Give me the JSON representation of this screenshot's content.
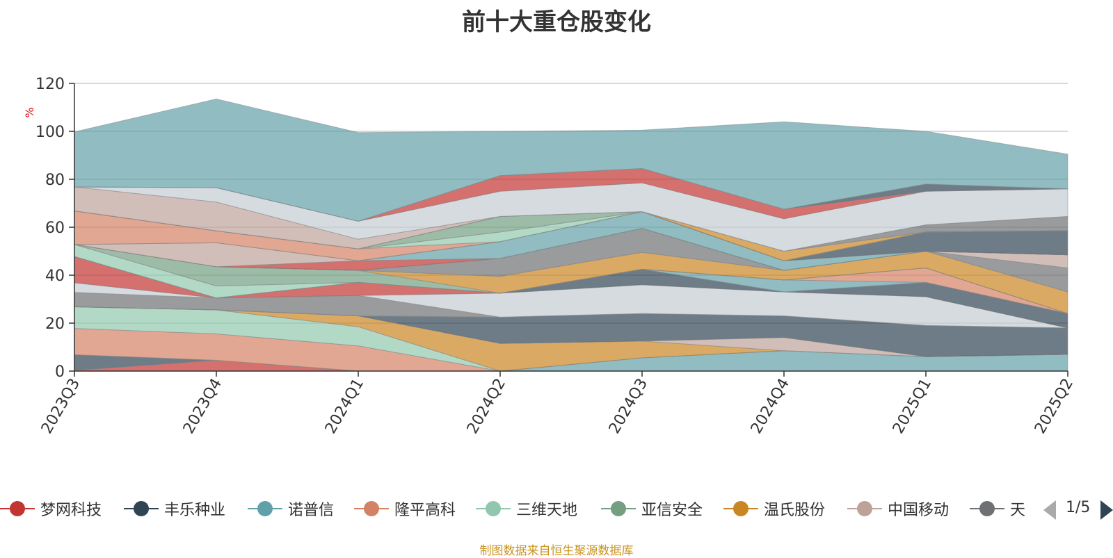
{
  "title": "前十大重仓股变化",
  "source_note": "制图数据来自恒生聚源数据库",
  "pager": {
    "text": "1/5"
  },
  "chart_data": {
    "type": "area",
    "stacked": true,
    "title": "前十大重仓股变化",
    "ylabel": "%",
    "ylim": [
      0,
      120
    ],
    "yticks": [
      0,
      20,
      40,
      60,
      80,
      100,
      120
    ],
    "grid": true,
    "legend_position": "bottom",
    "categories": [
      "2023Q3",
      "2023Q4",
      "2024Q1",
      "2024Q2",
      "2024Q3",
      "2024Q4",
      "2025Q1",
      "2025Q2"
    ],
    "legend": [
      {
        "name": "梦网科技",
        "color": "#c23531"
      },
      {
        "name": "丰乐种业",
        "color": "#2f4554"
      },
      {
        "name": "诺普信",
        "color": "#61a0a8"
      },
      {
        "name": "隆平高科",
        "color": "#d48265"
      },
      {
        "name": "三维天地",
        "color": "#91c7ae"
      },
      {
        "name": "亚信安全",
        "color": "#749f83"
      },
      {
        "name": "温氏股份",
        "color": "#ca8622"
      },
      {
        "name": "中国移动",
        "color": "#bda29a"
      },
      {
        "name": "天",
        "color": "#6e7074"
      }
    ],
    "bands": [
      {
        "color": "#c23531",
        "values": [
          0.3,
          4.5,
          0,
          0,
          0,
          0,
          0,
          0
        ]
      },
      {
        "color": "#2f4554",
        "values": [
          6.5,
          0,
          0,
          0,
          0,
          0,
          0,
          0
        ]
      },
      {
        "color": "#61a0a8",
        "values": [
          0,
          0,
          0,
          0,
          5.5,
          8.5,
          6,
          7
        ]
      },
      {
        "color": "#d48265",
        "values": [
          11,
          11,
          10.5,
          0,
          0,
          0,
          0,
          0
        ]
      },
      {
        "color": "#91c7ae",
        "values": [
          9,
          10,
          8,
          0,
          0,
          0,
          0,
          0
        ]
      },
      {
        "color": "#ca8622",
        "values": [
          0,
          0,
          4.5,
          11.5,
          7,
          0,
          0,
          0
        ]
      },
      {
        "color": "#bda29a",
        "values": [
          0,
          0,
          0,
          0,
          0,
          5.5,
          0,
          0
        ]
      },
      {
        "color": "#2f4554",
        "values": [
          0,
          0,
          0,
          11,
          11.5,
          9,
          13,
          11
        ]
      },
      {
        "color": "#6e7074",
        "values": [
          6,
          5,
          8.5,
          0,
          0,
          0,
          0,
          0
        ]
      },
      {
        "color": "#c4ccd3",
        "values": [
          4,
          0,
          0,
          10,
          12,
          10,
          12,
          0
        ]
      },
      {
        "color": "#c23531",
        "values": [
          11,
          0,
          5.5,
          0,
          0,
          0,
          0,
          0
        ]
      },
      {
        "color": "#2f4554",
        "values": [
          0,
          0,
          0,
          0,
          6.5,
          0,
          6,
          6
        ]
      },
      {
        "color": "#61a0a8",
        "values": [
          0,
          0,
          0,
          0,
          0,
          5,
          0,
          0
        ]
      },
      {
        "color": "#d48265",
        "values": [
          0,
          0,
          0,
          0,
          0,
          0,
          6,
          0
        ]
      },
      {
        "color": "#91c7ae",
        "values": [
          5,
          5,
          0,
          0,
          0,
          0,
          0,
          0
        ]
      },
      {
        "color": "#749f83",
        "values": [
          0,
          8,
          5,
          0,
          0,
          0,
          0,
          0
        ]
      },
      {
        "color": "#ca8622",
        "values": [
          0,
          0,
          0,
          7,
          7,
          4,
          7,
          9
        ]
      },
      {
        "color": "#6e7074",
        "values": [
          0,
          0,
          0,
          7.5,
          10,
          0,
          0,
          10
        ]
      },
      {
        "color": "#bda29a",
        "values": [
          0,
          0,
          0,
          0,
          0,
          0,
          0,
          5.5
        ]
      },
      {
        "color": "#c4ccd3",
        "values": [
          0,
          0,
          0,
          0,
          0,
          0,
          0,
          0
        ]
      },
      {
        "color": "#c23531",
        "values": [
          0,
          0,
          4,
          0,
          0,
          0,
          0,
          0
        ]
      },
      {
        "color": "#61a0a8",
        "values": [
          0,
          0,
          0,
          7,
          7,
          4,
          0,
          0
        ]
      },
      {
        "color": "#bda29a",
        "values": [
          0,
          10,
          0,
          0,
          0,
          0,
          0,
          0
        ]
      },
      {
        "color": "#2f4554",
        "values": [
          0,
          0,
          0,
          0,
          0,
          0,
          8,
          10
        ]
      },
      {
        "color": "#d48265",
        "values": [
          14,
          5,
          5,
          0,
          0,
          0,
          0,
          0
        ]
      },
      {
        "color": "#91c7ae",
        "values": [
          0,
          0,
          0,
          4,
          0,
          0,
          0,
          0
        ]
      },
      {
        "color": "#749f83",
        "values": [
          0,
          0,
          0,
          6.5,
          0,
          0,
          0,
          0
        ]
      },
      {
        "color": "#ca8622",
        "values": [
          0,
          0,
          0,
          0,
          0,
          4,
          0,
          0
        ]
      },
      {
        "color": "#6e7074",
        "values": [
          0,
          0,
          0,
          0,
          0,
          0,
          3,
          6
        ]
      },
      {
        "color": "#bda29a",
        "values": [
          10,
          12,
          4,
          0,
          0,
          0,
          0,
          0
        ]
      },
      {
        "color": "#c4ccd3",
        "values": [
          0,
          6,
          7.5,
          10.5,
          12,
          13.5,
          14,
          11.5
        ]
      },
      {
        "color": "#c23531",
        "values": [
          0,
          0,
          0,
          6.5,
          6,
          4,
          0,
          0
        ]
      },
      {
        "color": "#2f4554",
        "values": [
          0,
          0,
          0,
          0,
          0,
          0,
          3,
          0
        ]
      },
      {
        "color": "#61a0a8",
        "values": [
          23,
          37,
          37,
          18.5,
          16,
          36.5,
          22,
          14.5
        ]
      }
    ]
  }
}
